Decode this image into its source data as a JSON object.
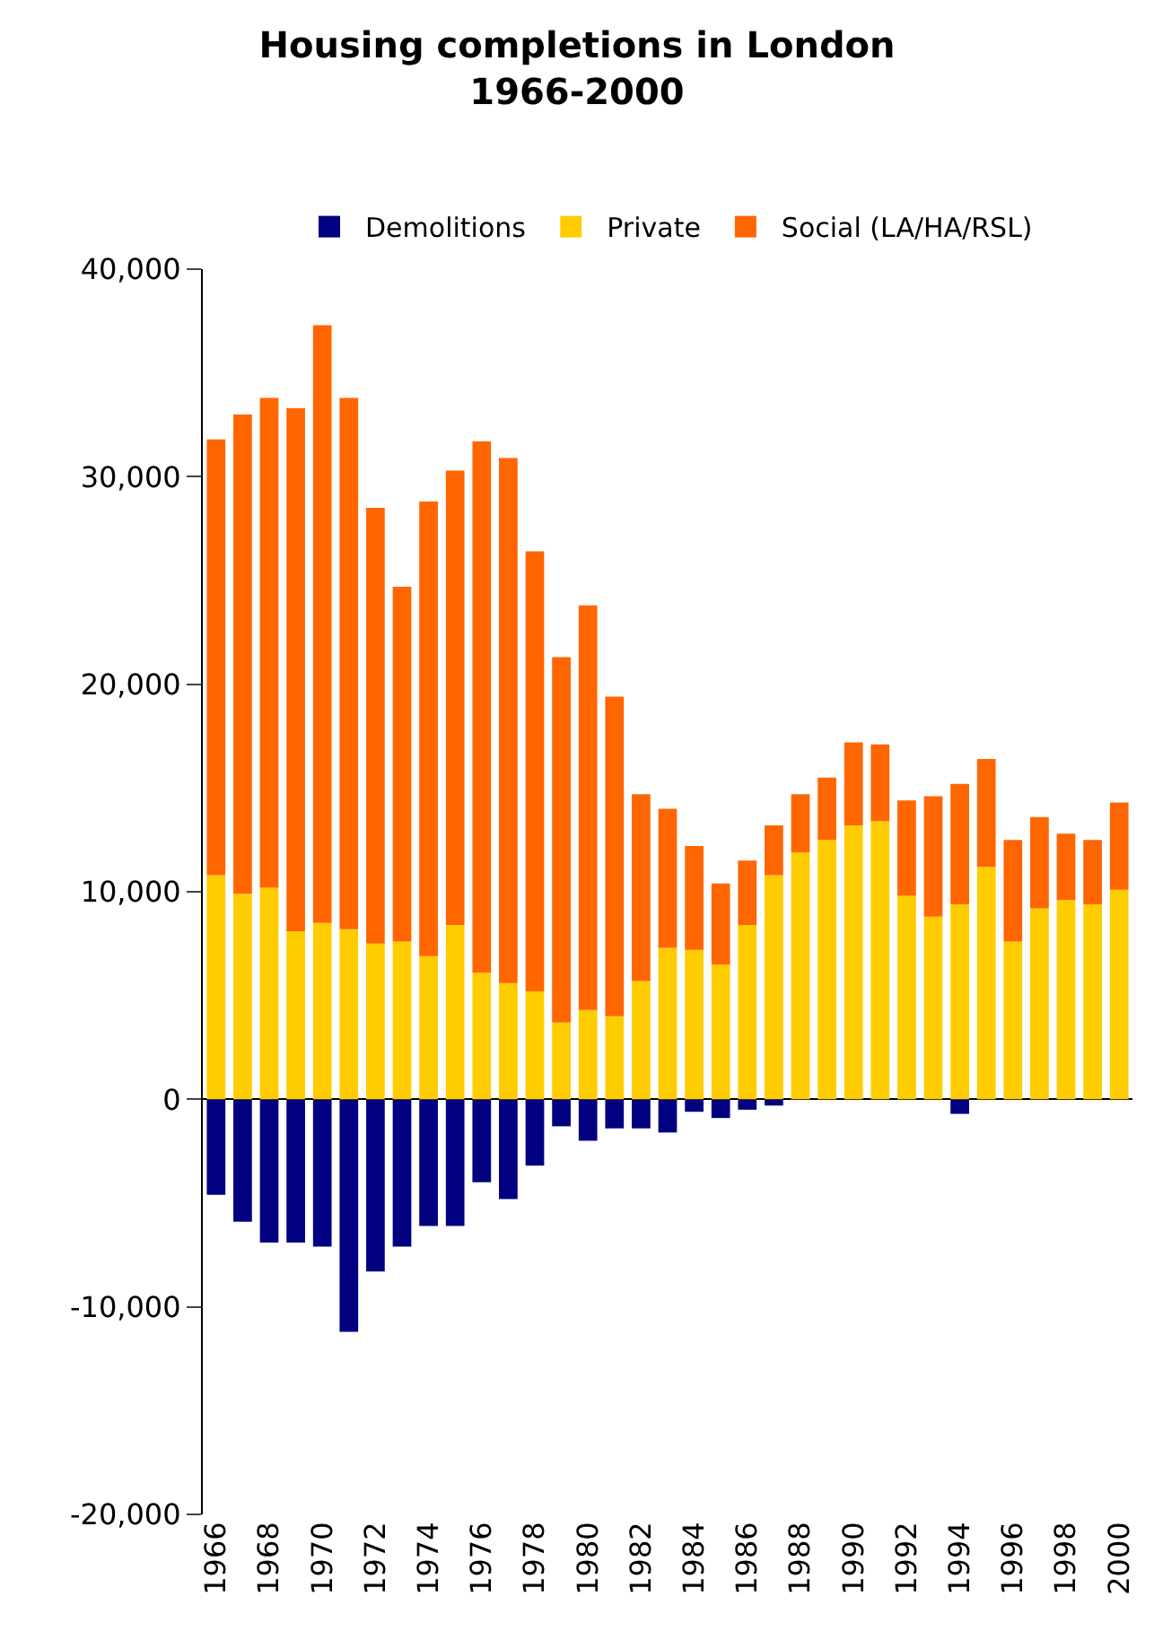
{
  "chart_data": {
    "type": "bar",
    "title": "Housing completions in London\n1966-2000",
    "stacked": true,
    "categories": [
      "1966",
      null,
      "1968",
      null,
      "1970",
      null,
      "1972",
      null,
      "1974",
      null,
      "1976",
      null,
      "1978",
      null,
      "1980",
      null,
      "1982",
      null,
      "1984",
      null,
      "1986",
      null,
      "1988",
      null,
      "1990",
      null,
      "1992",
      null,
      "1994",
      null,
      "1996",
      null,
      "1998",
      null,
      "2000"
    ],
    "series": [
      {
        "name": "Demolitions",
        "color": "#000080",
        "values": [
          -4600,
          -5900,
          -6900,
          -6900,
          -7100,
          -11200,
          -8300,
          -7100,
          -6100,
          -6100,
          -4000,
          -4800,
          -3200,
          -1300,
          -2000,
          -1400,
          -1400,
          -1600,
          -600,
          -900,
          -500,
          -300,
          0,
          0,
          0,
          0,
          0,
          0,
          -700,
          0,
          0,
          0,
          0,
          0,
          0
        ]
      },
      {
        "name": "Private",
        "color": "#ffcc00",
        "values": [
          10800,
          9900,
          10200,
          8100,
          8500,
          8200,
          7500,
          7600,
          6900,
          8400,
          6100,
          5600,
          5200,
          3700,
          4300,
          4000,
          5700,
          7300,
          7200,
          6500,
          8400,
          10800,
          11900,
          12500,
          13200,
          13400,
          9800,
          8800,
          9400,
          11200,
          7600,
          9200,
          9600,
          9400,
          10100
        ]
      },
      {
        "name": "Social (LA/HA/RSL)",
        "color": "#ff6600",
        "values": [
          21000,
          23100,
          23600,
          25200,
          28800,
          25600,
          21000,
          17100,
          21900,
          21900,
          25600,
          25300,
          21200,
          17600,
          19500,
          15400,
          9000,
          6700,
          5000,
          3900,
          3100,
          2400,
          2800,
          3000,
          4000,
          3700,
          4600,
          5800,
          5800,
          5200,
          4900,
          4400,
          3200,
          3100,
          4200
        ]
      }
    ],
    "ylim": [
      -20000,
      40000
    ],
    "yticks": [
      {
        "value": -20000,
        "label": "-20,000"
      },
      {
        "value": -10000,
        "label": "-10,000"
      },
      0,
      {
        "value": 10000,
        "label": "10,000"
      },
      {
        "value": 20000,
        "label": "20,000"
      },
      {
        "value": 30000,
        "label": "30,000"
      },
      {
        "value": 40000,
        "label": "40,000"
      }
    ],
    "legend": "top"
  }
}
